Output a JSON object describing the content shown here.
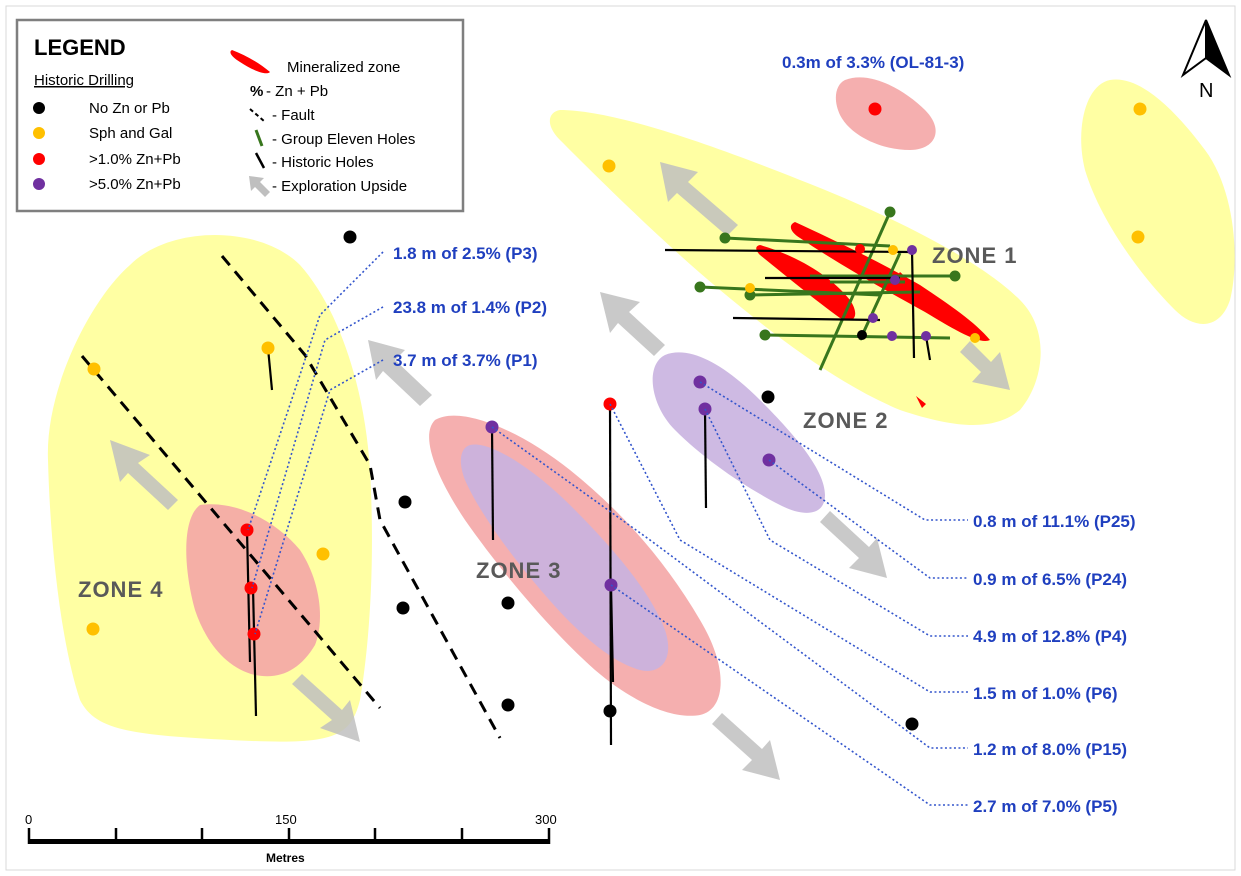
{
  "legend": {
    "title": "LEGEND",
    "subtitle": "Historic Drilling",
    "dot_items": [
      {
        "label": "No Zn or Pb",
        "color": "#000000"
      },
      {
        "label": "Sph and Gal",
        "color": "#ffc000"
      },
      {
        "label": ">1.0% Zn+Pb",
        "color": "#ff0000"
      },
      {
        "label": ">5.0% Zn+Pb",
        "color": "#7030a0"
      }
    ],
    "symbol_items": {
      "mineralized": "Mineralized zone",
      "pct_symbol": "%",
      "pct_label": "- Zn + Pb",
      "fault": "- Fault",
      "group_eleven": "- Group Eleven Holes",
      "historic_holes": "- Historic Holes",
      "upside": "- Exploration Upside"
    }
  },
  "north_label": "N",
  "zones": {
    "zone1": "ZONE 1",
    "zone2": "ZONE 2",
    "zone3": "ZONE 3",
    "zone4": "ZONE 4"
  },
  "annotations": {
    "ol81": "0.3m of 3.3% (OL-81-3)",
    "p3": "1.8 m of 2.5% (P3)",
    "p2": "23.8 m of 1.4% (P2)",
    "p1": "3.7 m of 3.7% (P1)",
    "p25": "0.8 m of 11.1% (P25)",
    "p24": "0.9 m of 6.5% (P24)",
    "p4": "4.9 m of 12.8% (P4)",
    "p6": "1.5 m of 1.0% (P6)",
    "p15": "1.2 m of 8.0% (P15)",
    "p5": "2.7 m of 7.0% (P5)"
  },
  "scale_bar": {
    "tick_0": "0",
    "tick_150": "150",
    "tick_300": "300",
    "unit": "Metres"
  },
  "colors": {
    "yellow_zone": "#ffff99",
    "pink_zone": "#f4a6a6",
    "purple_zone": "#c9b3e0",
    "mineralized": "#ff0000",
    "group_eleven": "#38761d",
    "annotation": "#1f3fbf",
    "arrow": "#bfbfbf"
  }
}
